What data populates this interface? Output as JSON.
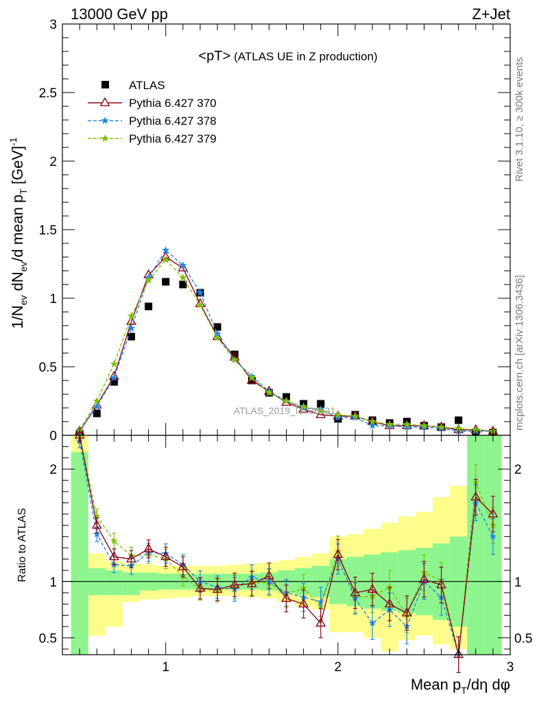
{
  "header": {
    "left": "13000 GeV pp",
    "right": "Z+Jet"
  },
  "side_labels": {
    "rivet": "Rivet 3.1.10, ≥ 300k events",
    "mcplots": "mcplots.cern.ch [arXiv:1306.3436]"
  },
  "colors": {
    "atlas": "#000000",
    "p370": "#8b0a1a",
    "p378": "#1e88e5",
    "p379": "#7cc200",
    "band_inner": "#8ef58e",
    "band_outer": "#fdfd8c"
  },
  "chart_data": [
    {
      "type": "scatter",
      "panel": "main",
      "title": "<pT>",
      "subtitle": "(ATLAS UE in Z production)",
      "watermark": "ATLAS_2019_I1736531",
      "ylabel": "1/N_ev dN_ev/d mean p_T [GeV]^-1",
      "xlim": [
        0.4,
        3.0
      ],
      "ylim": [
        0,
        3.0
      ],
      "yticks": [
        0,
        0.5,
        1,
        1.5,
        2,
        2.5,
        3
      ],
      "ytick_labels": [
        "0",
        "0.5",
        "1",
        "1.5",
        "2",
        "2.5",
        "3"
      ],
      "legend_position": "top-left",
      "x": [
        0.5,
        0.6,
        0.7,
        0.8,
        0.9,
        1.0,
        1.1,
        1.2,
        1.3,
        1.4,
        1.5,
        1.6,
        1.7,
        1.8,
        1.9,
        2.0,
        2.1,
        2.2,
        2.3,
        2.4,
        2.5,
        2.6,
        2.7,
        2.8,
        2.9
      ],
      "series": [
        {
          "name": "ATLAS",
          "style": "data",
          "values": [
            0.01,
            0.16,
            0.39,
            0.72,
            0.94,
            1.12,
            1.1,
            1.04,
            0.79,
            0.59,
            0.4,
            0.31,
            0.28,
            0.23,
            0.23,
            0.12,
            0.15,
            0.11,
            0.09,
            0.1,
            0.07,
            0.06,
            0.11,
            0.02,
            0.02
          ]
        },
        {
          "name": "Pythia 6.427 370",
          "style": "triangle",
          "values": [
            0.03,
            0.22,
            0.43,
            0.83,
            1.17,
            1.3,
            1.22,
            0.96,
            0.72,
            0.57,
            0.4,
            0.32,
            0.24,
            0.19,
            0.15,
            0.14,
            0.14,
            0.1,
            0.07,
            0.07,
            0.07,
            0.06,
            0.04,
            0.04,
            0.03
          ]
        },
        {
          "name": "Pythia 6.427 378",
          "style": "star-dashed",
          "values": [
            0.03,
            0.21,
            0.42,
            0.78,
            1.15,
            1.35,
            1.24,
            1.04,
            0.74,
            0.55,
            0.43,
            0.32,
            0.25,
            0.2,
            0.19,
            0.13,
            0.13,
            0.07,
            0.07,
            0.06,
            0.06,
            0.05,
            0.03,
            0.03,
            0.03
          ]
        },
        {
          "name": "Pythia 6.427 379",
          "style": "star-dashed",
          "values": [
            0.04,
            0.25,
            0.52,
            0.87,
            1.13,
            1.28,
            1.15,
            0.95,
            0.71,
            0.55,
            0.42,
            0.31,
            0.25,
            0.21,
            0.18,
            0.15,
            0.14,
            0.1,
            0.08,
            0.08,
            0.07,
            0.06,
            0.05,
            0.04,
            0.03
          ]
        }
      ]
    },
    {
      "type": "line",
      "panel": "ratio",
      "ylabel": "Ratio to ATLAS",
      "xlabel": "Mean p_T/dη dφ",
      "xlim": [
        0.4,
        3.0
      ],
      "xticks": [
        1,
        2,
        3
      ],
      "xtick_labels": [
        "1",
        "2",
        "3"
      ],
      "ylim": [
        0.35,
        2.3
      ],
      "yticks": [
        0.5,
        1,
        2
      ],
      "ytick_labels": [
        "0.5",
        "1",
        "2"
      ],
      "reference_line": 1,
      "x": [
        0.5,
        0.6,
        0.7,
        0.8,
        0.9,
        1.0,
        1.1,
        1.2,
        1.3,
        1.4,
        1.5,
        1.6,
        1.7,
        1.8,
        1.9,
        2.0,
        2.1,
        2.2,
        2.3,
        2.4,
        2.5,
        2.6,
        2.7,
        2.8,
        2.9
      ],
      "bands": {
        "edges": [
          0.45,
          0.55,
          0.65,
          0.75,
          0.85,
          0.95,
          1.05,
          1.15,
          1.25,
          1.35,
          1.45,
          1.55,
          1.65,
          1.75,
          1.85,
          1.95,
          2.05,
          2.15,
          2.25,
          2.35,
          2.45,
          2.55,
          2.65,
          2.75,
          2.85,
          2.95
        ],
        "inner_low": [
          0.35,
          0.88,
          0.88,
          0.88,
          0.92,
          0.93,
          0.93,
          0.93,
          0.93,
          0.93,
          0.93,
          0.92,
          0.9,
          0.88,
          0.86,
          0.8,
          0.78,
          0.76,
          0.74,
          0.72,
          0.7,
          0.66,
          0.6,
          0.35,
          0.35
        ],
        "inner_high": [
          2.15,
          1.12,
          1.1,
          1.08,
          1.08,
          1.07,
          1.07,
          1.07,
          1.07,
          1.07,
          1.07,
          1.08,
          1.1,
          1.12,
          1.14,
          1.2,
          1.22,
          1.24,
          1.26,
          1.28,
          1.3,
          1.34,
          1.4,
          2.3,
          2.3
        ],
        "outer_low": [
          0.35,
          0.52,
          0.6,
          0.82,
          0.84,
          0.85,
          0.86,
          0.87,
          0.87,
          0.87,
          0.86,
          0.85,
          0.82,
          0.78,
          0.75,
          0.55,
          0.55,
          0.5,
          0.38,
          0.48,
          0.52,
          0.44,
          0.4,
          0.35,
          0.35
        ],
        "outer_high": [
          2.3,
          1.25,
          1.18,
          1.16,
          1.15,
          1.14,
          1.14,
          1.14,
          1.14,
          1.15,
          1.16,
          1.17,
          1.19,
          1.22,
          1.25,
          1.4,
          1.42,
          1.47,
          1.52,
          1.58,
          1.62,
          1.75,
          1.85,
          2.3,
          2.3
        ]
      },
      "series": [
        {
          "name": "Pythia 6.427 370",
          "values": [
            2.3,
            1.5,
            1.22,
            1.2,
            1.29,
            1.22,
            1.13,
            0.94,
            0.93,
            0.97,
            0.98,
            1.05,
            0.85,
            0.8,
            0.63,
            1.24,
            0.9,
            0.93,
            0.8,
            0.72,
            1.02,
            0.97,
            0.3,
            1.75,
            1.6
          ]
        },
        {
          "name": "Pythia 6.427 378",
          "values": [
            2.25,
            1.42,
            1.15,
            1.14,
            1.26,
            1.25,
            1.15,
            1.0,
            0.95,
            0.93,
            1.04,
            1.0,
            0.9,
            0.86,
            0.82,
            1.2,
            0.85,
            0.63,
            0.75,
            0.6,
            1.0,
            0.86,
            0.3,
            1.7,
            1.4
          ]
        },
        {
          "name": "Pythia 6.427 379",
          "values": [
            2.4,
            1.58,
            1.36,
            1.23,
            1.24,
            1.2,
            1.05,
            0.93,
            0.92,
            0.95,
            0.99,
            0.99,
            0.89,
            0.94,
            0.78,
            1.27,
            0.86,
            0.87,
            0.95,
            0.7,
            1.08,
            1.01,
            0.35,
            1.88,
            1.5
          ]
        }
      ]
    }
  ]
}
